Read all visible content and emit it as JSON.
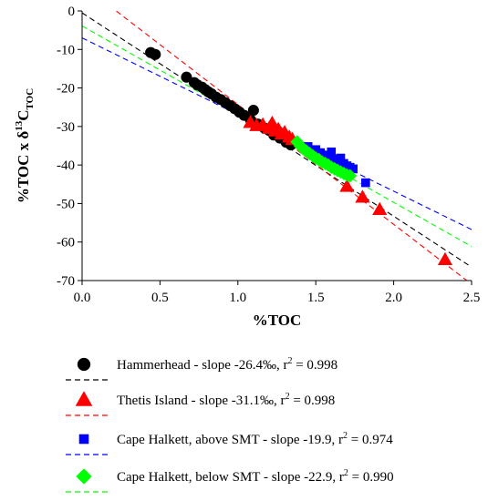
{
  "chart_data": {
    "type": "scatter",
    "xlabel": "%TOC",
    "ylabel": {
      "main": "%TOC x δ",
      "sup": "13",
      "sub": "C",
      "sub2": "TOC"
    },
    "xlim": [
      0.0,
      2.5
    ],
    "ylim": [
      -70,
      0
    ],
    "xticks": [
      "0.0",
      "0.5",
      "1.0",
      "1.5",
      "2.0",
      "2.5"
    ],
    "yticks": [
      "0",
      "-10",
      "-20",
      "-30",
      "-40",
      "-50",
      "-60",
      "-70"
    ],
    "grid": false,
    "legend_position": "bottom",
    "series": [
      {
        "name": "Hammerhead - slope -26.4‰, r",
        "r2": "2",
        "r2_value": " = 0.998",
        "marker": "circle",
        "color": "#000000",
        "line_color": "#000000",
        "trend": {
          "slope": -26.4,
          "intercept": -0.5,
          "x_range": [
            0.0,
            2.5
          ]
        },
        "points": [
          [
            0.44,
            -10.8
          ],
          [
            0.47,
            -11.3
          ],
          [
            0.67,
            -17.2
          ],
          [
            0.72,
            -18.6
          ],
          [
            0.74,
            -19.2
          ],
          [
            0.77,
            -19.8
          ],
          [
            0.79,
            -20.4
          ],
          [
            0.81,
            -21.0
          ],
          [
            0.83,
            -21.5
          ],
          [
            0.86,
            -22.4
          ],
          [
            0.89,
            -23.0
          ],
          [
            0.92,
            -23.8
          ],
          [
            0.95,
            -24.6
          ],
          [
            0.98,
            -25.4
          ],
          [
            1.01,
            -26.3
          ],
          [
            1.04,
            -27.1
          ],
          [
            1.08,
            -28.2
          ],
          [
            1.1,
            -25.8
          ],
          [
            1.13,
            -29.4
          ],
          [
            1.17,
            -30.4
          ],
          [
            1.2,
            -31.0
          ],
          [
            1.23,
            -32.2
          ],
          [
            1.27,
            -33.0
          ],
          [
            1.31,
            -34.1
          ],
          [
            1.34,
            -34.8
          ]
        ]
      },
      {
        "name": "Thetis Island - slope -31.1‰, r",
        "r2": "2",
        "r2_value": " = 0.998",
        "marker": "triangle",
        "color": "#ff0000",
        "line_color": "#ff0000",
        "trend": {
          "slope": -31.1,
          "intercept": 6.8,
          "x_range": [
            0.22,
            2.5
          ]
        },
        "points": [
          [
            1.08,
            -29.0
          ],
          [
            1.12,
            -29.8
          ],
          [
            1.16,
            -29.6
          ],
          [
            1.2,
            -30.5
          ],
          [
            1.22,
            -29.2
          ],
          [
            1.24,
            -31.2
          ],
          [
            1.26,
            -30.8
          ],
          [
            1.28,
            -32.0
          ],
          [
            1.3,
            -31.6
          ],
          [
            1.33,
            -32.8
          ],
          [
            1.35,
            -33.4
          ],
          [
            1.7,
            -45.6
          ],
          [
            1.8,
            -48.4
          ],
          [
            1.91,
            -51.6
          ],
          [
            2.33,
            -64.6
          ]
        ]
      },
      {
        "name": "Cape Halkett, above SMT - slope -19.9, r",
        "r2": "2",
        "r2_value": " = 0.974",
        "marker": "square",
        "color": "#0000ff",
        "line_color": "#0000ff",
        "trend": {
          "slope": -19.9,
          "intercept": -7.0,
          "x_range": [
            0.0,
            2.5
          ]
        },
        "points": [
          [
            1.45,
            -35.2
          ],
          [
            1.5,
            -36.0
          ],
          [
            1.53,
            -36.8
          ],
          [
            1.56,
            -37.4
          ],
          [
            1.58,
            -37.8
          ],
          [
            1.6,
            -36.6
          ],
          [
            1.62,
            -38.4
          ],
          [
            1.64,
            -39.0
          ],
          [
            1.66,
            -38.2
          ],
          [
            1.68,
            -39.6
          ],
          [
            1.7,
            -40.2
          ],
          [
            1.72,
            -40.6
          ],
          [
            1.74,
            -41.0
          ],
          [
            1.82,
            -44.6
          ]
        ]
      },
      {
        "name": "Cape Halkett, below SMT - slope -22.9, r",
        "r2": "2",
        "r2_value": " = 0.990",
        "marker": "diamond",
        "color": "#00ff00",
        "line_color": "#00ff00",
        "trend": {
          "slope": -22.9,
          "intercept": -3.9,
          "x_range": [
            0.0,
            2.5
          ]
        },
        "points": [
          [
            1.38,
            -34.0
          ],
          [
            1.4,
            -35.0
          ],
          [
            1.42,
            -35.8
          ],
          [
            1.44,
            -36.4
          ],
          [
            1.46,
            -37.0
          ],
          [
            1.48,
            -37.6
          ],
          [
            1.5,
            -38.2
          ],
          [
            1.52,
            -38.6
          ],
          [
            1.54,
            -39.2
          ],
          [
            1.56,
            -39.6
          ],
          [
            1.58,
            -40.0
          ],
          [
            1.6,
            -40.6
          ],
          [
            1.62,
            -41.0
          ],
          [
            1.64,
            -41.4
          ],
          [
            1.66,
            -41.8
          ],
          [
            1.68,
            -42.2
          ],
          [
            1.7,
            -42.6
          ],
          [
            1.72,
            -42.8
          ]
        ]
      }
    ]
  }
}
